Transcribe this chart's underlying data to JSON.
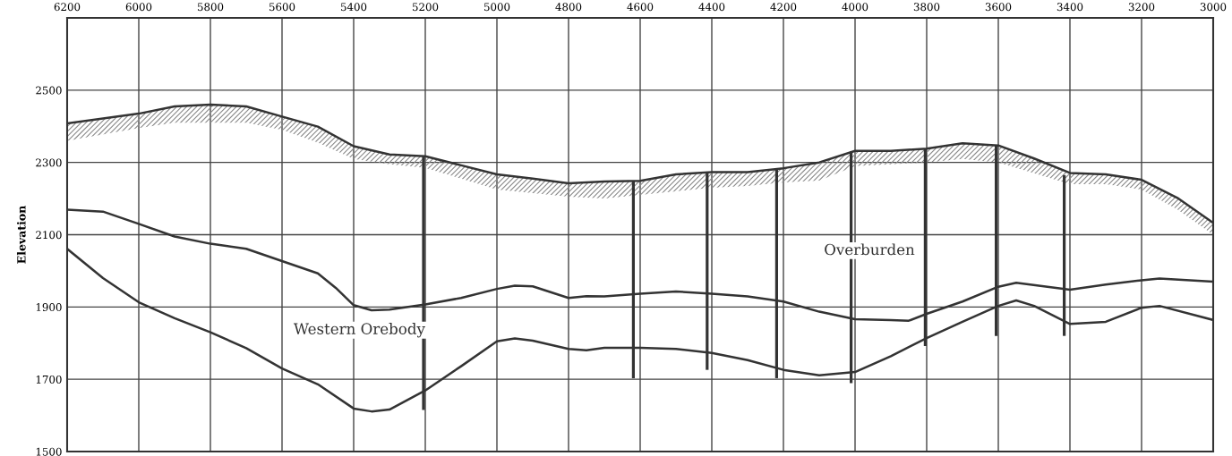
{
  "chart_data": {
    "type": "line",
    "ylabel": "Elevation",
    "xlim": [
      6200,
      3000
    ],
    "xticks": [
      6200,
      6000,
      5800,
      5600,
      5400,
      5200,
      5000,
      4800,
      4600,
      4400,
      4200,
      4000,
      3800,
      3600,
      3400,
      3200,
      3000
    ],
    "ylim": [
      1500,
      2700
    ],
    "yticks": [
      1500,
      1700,
      1900,
      2100,
      2300,
      2500
    ],
    "grid": true,
    "marker": "none",
    "line_style": "solid",
    "series": [
      {
        "color": "#333333",
        "x": [
          6200,
          6000,
          5900,
          5800,
          5700,
          5600,
          5500,
          5400,
          5300,
          5200,
          5100,
          5000,
          4900,
          4800,
          4700,
          4600,
          4500,
          4400,
          4300,
          4200,
          4100,
          4000,
          3900,
          3800,
          3700,
          3600,
          3500,
          3400,
          3300,
          3200,
          3100,
          3000
        ],
        "values": [
          2408,
          2435,
          2455,
          2460,
          2455,
          2427,
          2399,
          2345,
          2322,
          2317,
          2292,
          2267,
          2255,
          2242,
          2247,
          2249,
          2267,
          2273,
          2273,
          2284,
          2300,
          2332,
          2332,
          2338,
          2353,
          2347,
          2311,
          2271,
          2267,
          2252,
          2202,
          2133
        ],
        "lower": [
          2360,
          2395,
          2410,
          2410,
          2410,
          2390,
          2355,
          2310,
          2295,
          2285,
          2255,
          2225,
          2215,
          2205,
          2200,
          2210,
          2220,
          2230,
          2235,
          2245,
          2250,
          2290,
          2295,
          2300,
          2310,
          2300,
          2270,
          2240,
          2240,
          2225,
          2170,
          2100
        ],
        "upper": [
          2408,
          2435,
          2455,
          2460,
          2455,
          2427,
          2399,
          2345,
          2322,
          2317,
          2292,
          2267,
          2255,
          2242,
          2247,
          2249,
          2267,
          2273,
          2273,
          2284,
          2300,
          2332,
          2332,
          2338,
          2353,
          2347,
          2311,
          2271,
          2267,
          2252,
          2202,
          2133
        ]
      },
      {
        "color": "#333333",
        "x": [
          6200,
          6100,
          6000,
          5900,
          5800,
          5700,
          5600,
          5500,
          5450,
          5400,
          5350,
          5300,
          5200,
          5100,
          5000,
          4950,
          4900,
          4800,
          4750,
          4700,
          4600,
          4500,
          4400,
          4300,
          4200,
          4100,
          4000,
          3900,
          3850,
          3800,
          3700,
          3600,
          3550,
          3400,
          3300,
          3200,
          3150,
          3000
        ],
        "values": [
          2169,
          2164,
          2130,
          2095,
          2075,
          2061,
          2027,
          1993,
          1953,
          1905,
          1891,
          1893,
          1907,
          1925,
          1950,
          1959,
          1957,
          1925,
          1930,
          1929,
          1937,
          1943,
          1937,
          1929,
          1915,
          1887,
          1866,
          1864,
          1862,
          1881,
          1915,
          1956,
          1967,
          1948,
          1962,
          1974,
          1979,
          1970
        ]
      },
      {
        "color": "#333333",
        "x": [
          6200,
          6100,
          6000,
          5900,
          5800,
          5700,
          5600,
          5500,
          5400,
          5350,
          5300,
          5200,
          5100,
          5000,
          4950,
          4900,
          4800,
          4750,
          4700,
          4600,
          4500,
          4400,
          4300,
          4200,
          4100,
          4000,
          3900,
          3800,
          3700,
          3600,
          3550,
          3500,
          3400,
          3300,
          3200,
          3150,
          3000
        ],
        "values": [
          2061,
          1980,
          1913,
          1869,
          1830,
          1786,
          1730,
          1686,
          1619,
          1611,
          1616,
          1669,
          1736,
          1805,
          1813,
          1807,
          1784,
          1780,
          1787,
          1787,
          1784,
          1773,
          1753,
          1726,
          1711,
          1720,
          1764,
          1814,
          1859,
          1903,
          1918,
          1903,
          1853,
          1859,
          1898,
          1903,
          1864
        ]
      },
      {
        "type": "bar",
        "color": "#333333",
        "x": [
          5205,
          4619,
          4413,
          4219,
          4011,
          3804,
          3606,
          3416
        ],
        "base": [
          1615,
          1703,
          1726,
          1703,
          1689,
          1792,
          1820,
          1820
        ],
        "values": [
          701,
          546,
          547,
          581,
          641,
          546,
          527,
          445
        ]
      }
    ],
    "annotations": [
      "Western Orebody",
      "Overburden"
    ]
  }
}
